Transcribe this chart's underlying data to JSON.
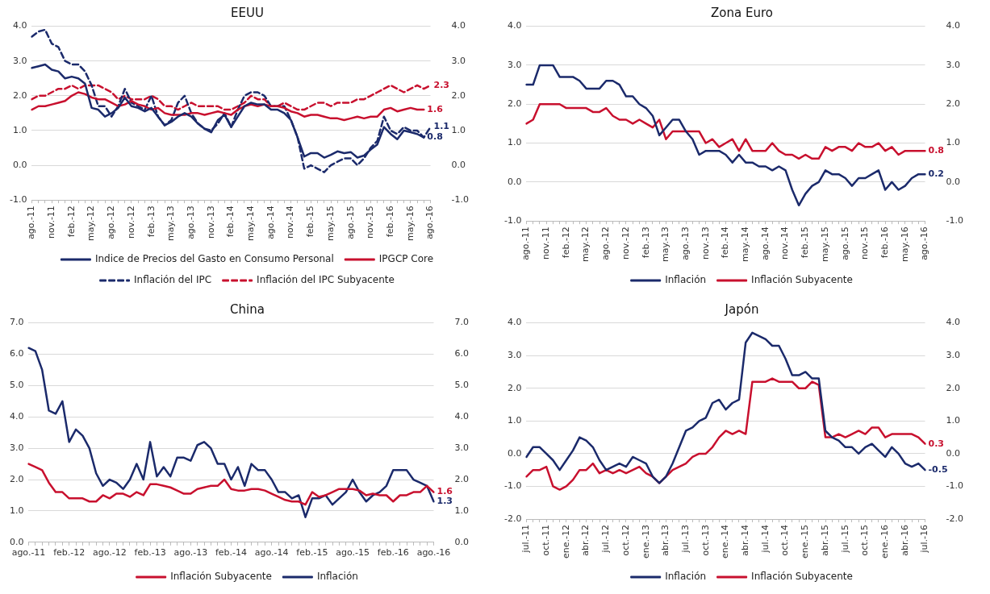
{
  "chart_data": [
    {
      "type": "line",
      "title": "EEUU",
      "legend": "bottom",
      "grid": "y",
      "marker": "none",
      "categories": [
        "ago.-11",
        null,
        null,
        "nov.-11",
        null,
        null,
        "feb.-12",
        null,
        null,
        "may.-12",
        null,
        null,
        "ago.-12",
        null,
        null,
        "nov.-12",
        null,
        null,
        "feb.-13",
        null,
        null,
        "may.-13",
        null,
        null,
        "ago.-13",
        null,
        null,
        "nov.-13",
        null,
        null,
        "feb.-14",
        null,
        null,
        "may.-14",
        null,
        null,
        "ago.-14",
        null,
        null,
        "nov.-14",
        null,
        null,
        "feb.-15",
        null,
        null,
        "may.-15",
        null,
        null,
        "ago.-15",
        null,
        null,
        "nov.-15",
        null,
        null,
        "feb.-16",
        null,
        null,
        "may.-16",
        null,
        null,
        "ago.-16"
      ],
      "ylim": [
        -1,
        4
      ],
      "yticks": [
        {
          "value": -1,
          "label": "-1.0"
        },
        {
          "value": 0,
          "label": "0.0"
        },
        {
          "value": 1,
          "label": "1.0"
        },
        {
          "value": 2,
          "label": "2.0"
        },
        {
          "value": 3,
          "label": "3.0"
        },
        {
          "value": 4,
          "label": "4.0"
        }
      ],
      "y2lim": [
        -1,
        4
      ],
      "y2ticks": [
        {
          "value": -1,
          "label": "-1.0"
        },
        {
          "value": 0,
          "label": "0.0"
        },
        {
          "value": 1,
          "label": "1.0"
        },
        {
          "value": 2,
          "label": "2.0"
        },
        {
          "value": 3,
          "label": "3.0"
        },
        {
          "value": 4,
          "label": "4.0"
        }
      ],
      "series": [
        {
          "name": "Indice de Precios del Gasto en Consumo Personal",
          "color": "#1b2a6b",
          "line_style": "solid",
          "values": [
            2.8,
            2.85,
            2.9,
            2.75,
            2.7,
            2.5,
            2.55,
            2.5,
            2.35,
            1.65,
            1.6,
            1.4,
            1.5,
            1.65,
            1.95,
            1.7,
            1.65,
            1.55,
            1.65,
            1.4,
            1.15,
            1.25,
            1.4,
            1.5,
            1.4,
            1.2,
            1.05,
            0.95,
            1.3,
            1.45,
            1.1,
            1.4,
            1.7,
            1.8,
            1.75,
            1.75,
            1.6,
            1.6,
            1.5,
            1.3,
            0.8,
            0.25,
            0.35,
            0.35,
            0.22,
            0.3,
            0.4,
            0.35,
            0.38,
            0.22,
            0.28,
            0.45,
            0.6,
            1.1,
            0.9,
            0.75,
            1.0,
            0.95,
            0.9,
            0.8,
            null
          ],
          "value_labels": [
            null,
            null,
            null,
            null,
            null,
            null,
            null,
            null,
            null,
            null,
            null,
            null,
            null,
            null,
            null,
            null,
            null,
            null,
            null,
            null,
            null,
            null,
            null,
            null,
            null,
            null,
            null,
            null,
            null,
            null,
            null,
            null,
            null,
            null,
            null,
            null,
            null,
            null,
            null,
            null,
            null,
            null,
            null,
            null,
            null,
            null,
            null,
            null,
            null,
            null,
            null,
            null,
            null,
            null,
            null,
            null,
            null,
            null,
            null,
            "0.8",
            null
          ]
        },
        {
          "name": "IPGCP Core",
          "color": "#c8102e",
          "line_style": "solid",
          "values": [
            1.6,
            1.7,
            1.7,
            1.75,
            1.8,
            1.85,
            2.0,
            2.1,
            2.05,
            1.95,
            1.9,
            1.9,
            1.8,
            1.7,
            1.75,
            1.85,
            1.75,
            1.7,
            1.6,
            1.65,
            1.5,
            1.45,
            1.45,
            1.45,
            1.5,
            1.5,
            1.45,
            1.5,
            1.55,
            1.5,
            1.45,
            1.6,
            1.7,
            1.75,
            1.7,
            1.75,
            1.7,
            1.7,
            1.65,
            1.55,
            1.5,
            1.4,
            1.45,
            1.45,
            1.4,
            1.35,
            1.35,
            1.3,
            1.35,
            1.4,
            1.35,
            1.4,
            1.4,
            1.6,
            1.65,
            1.55,
            1.6,
            1.65,
            1.6,
            1.6,
            null
          ],
          "value_labels": [
            null,
            null,
            null,
            null,
            null,
            null,
            null,
            null,
            null,
            null,
            null,
            null,
            null,
            null,
            null,
            null,
            null,
            null,
            null,
            null,
            null,
            null,
            null,
            null,
            null,
            null,
            null,
            null,
            null,
            null,
            null,
            null,
            null,
            null,
            null,
            null,
            null,
            null,
            null,
            null,
            null,
            null,
            null,
            null,
            null,
            null,
            null,
            null,
            null,
            null,
            null,
            null,
            null,
            null,
            null,
            null,
            null,
            null,
            null,
            "1.6",
            null
          ]
        },
        {
          "name": "Inflación del IPC",
          "color": "#1b2a6b",
          "line_style": "dashed",
          "values": [
            3.7,
            3.85,
            3.9,
            3.5,
            3.4,
            3.0,
            2.9,
            2.9,
            2.7,
            2.3,
            1.7,
            1.7,
            1.4,
            1.7,
            2.2,
            1.8,
            1.7,
            1.6,
            2.0,
            1.4,
            1.15,
            1.3,
            1.8,
            2.0,
            1.5,
            1.2,
            1.05,
            1.0,
            1.2,
            1.5,
            1.1,
            1.6,
            2.0,
            2.1,
            2.1,
            2.0,
            1.7,
            1.7,
            1.7,
            1.3,
            0.8,
            -0.1,
            0.0,
            -0.1,
            -0.2,
            0.0,
            0.1,
            0.2,
            0.2,
            0.0,
            0.2,
            0.5,
            0.7,
            1.4,
            1.0,
            0.9,
            1.1,
            1.0,
            1.0,
            0.8,
            1.1
          ],
          "value_labels": [
            null,
            null,
            null,
            null,
            null,
            null,
            null,
            null,
            null,
            null,
            null,
            null,
            null,
            null,
            null,
            null,
            null,
            null,
            null,
            null,
            null,
            null,
            null,
            null,
            null,
            null,
            null,
            null,
            null,
            null,
            null,
            null,
            null,
            null,
            null,
            null,
            null,
            null,
            null,
            null,
            null,
            null,
            null,
            null,
            null,
            null,
            null,
            null,
            null,
            null,
            null,
            null,
            null,
            null,
            null,
            null,
            null,
            null,
            null,
            null,
            "1.1"
          ]
        },
        {
          "name": "Inflación del IPC Subyacente",
          "color": "#c8102e",
          "line_style": "dashed",
          "values": [
            1.9,
            2.0,
            2.0,
            2.1,
            2.2,
            2.2,
            2.3,
            2.2,
            2.3,
            2.3,
            2.3,
            2.2,
            2.1,
            1.9,
            2.0,
            1.9,
            1.9,
            1.9,
            2.0,
            1.9,
            1.7,
            1.7,
            1.6,
            1.7,
            1.8,
            1.7,
            1.7,
            1.7,
            1.7,
            1.6,
            1.6,
            1.7,
            1.8,
            2.0,
            1.9,
            1.9,
            1.7,
            1.7,
            1.8,
            1.7,
            1.6,
            1.6,
            1.7,
            1.8,
            1.8,
            1.7,
            1.8,
            1.8,
            1.8,
            1.9,
            1.9,
            2.0,
            2.1,
            2.2,
            2.3,
            2.2,
            2.1,
            2.2,
            2.3,
            2.2,
            2.3
          ],
          "value_labels": [
            null,
            null,
            null,
            null,
            null,
            null,
            null,
            null,
            null,
            null,
            null,
            null,
            null,
            null,
            null,
            null,
            null,
            null,
            null,
            null,
            null,
            null,
            null,
            null,
            null,
            null,
            null,
            null,
            null,
            null,
            null,
            null,
            null,
            null,
            null,
            null,
            null,
            null,
            null,
            null,
            null,
            null,
            null,
            null,
            null,
            null,
            null,
            null,
            null,
            null,
            null,
            null,
            null,
            null,
            null,
            null,
            null,
            null,
            null,
            null,
            "2.3"
          ]
        }
      ]
    },
    {
      "type": "line",
      "title": "Zona Euro",
      "legend": "bottom",
      "grid": "y",
      "marker": "none",
      "categories": [
        "ago.-11",
        null,
        null,
        "nov.-11",
        null,
        null,
        "feb.-12",
        null,
        null,
        "may.-12",
        null,
        null,
        "ago.-12",
        null,
        null,
        "nov.-12",
        null,
        null,
        "feb.-13",
        null,
        null,
        "may.-13",
        null,
        null,
        "ago.-13",
        null,
        null,
        "nov.-13",
        null,
        null,
        "feb.-14",
        null,
        null,
        "may.-14",
        null,
        null,
        "ago.-14",
        null,
        null,
        "nov.-14",
        null,
        null,
        "feb.-15",
        null,
        null,
        "may.-15",
        null,
        null,
        "ago.-15",
        null,
        null,
        "nov.-15",
        null,
        null,
        "feb.-16",
        null,
        null,
        "may.-16",
        null,
        null,
        "ago.-16"
      ],
      "ylim": [
        -1,
        4
      ],
      "yticks": [
        {
          "value": -1,
          "label": "-1.0"
        },
        {
          "value": 0,
          "label": "0.0"
        },
        {
          "value": 1,
          "label": "1.0"
        },
        {
          "value": 2,
          "label": "2.0"
        },
        {
          "value": 3,
          "label": "3.0"
        },
        {
          "value": 4,
          "label": "4.0"
        }
      ],
      "y2lim": [
        -1,
        4
      ],
      "y2ticks": [
        {
          "value": -1,
          "label": "-1.0"
        },
        {
          "value": 0,
          "label": "0.0"
        },
        {
          "value": 1,
          "label": "1.0"
        },
        {
          "value": 2,
          "label": "2.0"
        },
        {
          "value": 3,
          "label": "3.0"
        },
        {
          "value": 4,
          "label": "4.0"
        }
      ],
      "series": [
        {
          "name": "Inflación",
          "color": "#1b2a6b",
          "values": [
            2.5,
            2.5,
            3.0,
            3.0,
            3.0,
            2.7,
            2.7,
            2.7,
            2.6,
            2.4,
            2.4,
            2.4,
            2.6,
            2.6,
            2.5,
            2.2,
            2.2,
            2.0,
            1.9,
            1.7,
            1.2,
            1.4,
            1.6,
            1.6,
            1.3,
            1.1,
            0.7,
            0.8,
            0.8,
            0.8,
            0.7,
            0.5,
            0.7,
            0.5,
            0.5,
            0.4,
            0.4,
            0.3,
            0.4,
            0.3,
            -0.2,
            -0.6,
            -0.3,
            -0.1,
            0.0,
            0.3,
            0.2,
            0.2,
            0.1,
            -0.1,
            0.1,
            0.1,
            0.2,
            0.3,
            -0.2,
            0.0,
            -0.2,
            -0.1,
            0.1,
            0.2,
            0.2
          ],
          "value_labels": [
            null,
            null,
            null,
            null,
            null,
            null,
            null,
            null,
            null,
            null,
            null,
            null,
            null,
            null,
            null,
            null,
            null,
            null,
            null,
            null,
            null,
            null,
            null,
            null,
            null,
            null,
            null,
            null,
            null,
            null,
            null,
            null,
            null,
            null,
            null,
            null,
            null,
            null,
            null,
            null,
            null,
            null,
            null,
            null,
            null,
            null,
            null,
            null,
            null,
            null,
            null,
            null,
            null,
            null,
            null,
            null,
            null,
            null,
            null,
            null,
            "0.2"
          ]
        },
        {
          "name": "Inflación Subyacente",
          "color": "#c8102e",
          "values": [
            1.5,
            1.6,
            2.0,
            2.0,
            2.0,
            2.0,
            1.9,
            1.9,
            1.9,
            1.9,
            1.8,
            1.8,
            1.9,
            1.7,
            1.6,
            1.6,
            1.5,
            1.6,
            1.5,
            1.4,
            1.6,
            1.1,
            1.3,
            1.3,
            1.3,
            1.3,
            1.3,
            1.0,
            1.1,
            0.9,
            1.0,
            1.1,
            0.8,
            1.1,
            0.8,
            0.8,
            0.8,
            1.0,
            0.8,
            0.7,
            0.7,
            0.6,
            0.7,
            0.6,
            0.6,
            0.9,
            0.8,
            0.9,
            0.9,
            0.8,
            1.0,
            0.9,
            0.9,
            1.0,
            0.8,
            0.9,
            0.7,
            0.8,
            0.8,
            0.8,
            0.8
          ],
          "value_labels": [
            null,
            null,
            null,
            null,
            null,
            null,
            null,
            null,
            null,
            null,
            null,
            null,
            null,
            null,
            null,
            null,
            null,
            null,
            null,
            null,
            null,
            null,
            null,
            null,
            null,
            null,
            null,
            null,
            null,
            null,
            null,
            null,
            null,
            null,
            null,
            null,
            null,
            null,
            null,
            null,
            null,
            null,
            null,
            null,
            null,
            null,
            null,
            null,
            null,
            null,
            null,
            null,
            null,
            null,
            null,
            null,
            null,
            null,
            null,
            null,
            "0.8"
          ]
        }
      ]
    },
    {
      "type": "line",
      "title": "China",
      "legend": "bottom",
      "grid": "y",
      "marker": "none",
      "categories": [
        "ago.-11",
        null,
        null,
        null,
        null,
        null,
        "feb.-12",
        null,
        null,
        null,
        null,
        null,
        "ago.-12",
        null,
        null,
        null,
        null,
        null,
        "feb.-13",
        null,
        null,
        null,
        null,
        null,
        "ago.-13",
        null,
        null,
        null,
        null,
        null,
        "feb.-14",
        null,
        null,
        null,
        null,
        null,
        "ago.-14",
        null,
        null,
        null,
        null,
        null,
        "feb.-15",
        null,
        null,
        null,
        null,
        null,
        "ago.-15",
        null,
        null,
        null,
        null,
        null,
        "feb.-16",
        null,
        null,
        null,
        null,
        null,
        "ago.-16"
      ],
      "ylim": [
        0,
        7
      ],
      "yticks": [
        {
          "value": 0,
          "label": "0.0"
        },
        {
          "value": 1,
          "label": "1.0"
        },
        {
          "value": 2,
          "label": "2.0"
        },
        {
          "value": 3,
          "label": "3.0"
        },
        {
          "value": 4,
          "label": "4.0"
        },
        {
          "value": 5,
          "label": "5.0"
        },
        {
          "value": 6,
          "label": "6.0"
        },
        {
          "value": 7,
          "label": "7.0"
        }
      ],
      "y2lim": [
        0,
        7
      ],
      "y2ticks": [
        {
          "value": 0,
          "label": "0.0"
        },
        {
          "value": 1,
          "label": "1.0"
        },
        {
          "value": 2,
          "label": "2.0"
        },
        {
          "value": 3,
          "label": "3.0"
        },
        {
          "value": 4,
          "label": "4.0"
        },
        {
          "value": 5,
          "label": "5.0"
        },
        {
          "value": 6,
          "label": "6.0"
        },
        {
          "value": 7,
          "label": "7.0"
        }
      ],
      "series": [
        {
          "name": "Inflación Subyacente",
          "color": "#c8102e",
          "values": [
            2.5,
            2.4,
            2.3,
            1.9,
            1.6,
            1.6,
            1.4,
            1.4,
            1.4,
            1.3,
            1.3,
            1.5,
            1.4,
            1.55,
            1.55,
            1.45,
            1.6,
            1.5,
            1.85,
            1.85,
            1.8,
            1.75,
            1.65,
            1.55,
            1.55,
            1.7,
            1.75,
            1.8,
            1.8,
            2.0,
            1.7,
            1.65,
            1.65,
            1.7,
            1.7,
            1.65,
            1.55,
            1.45,
            1.35,
            1.3,
            1.3,
            1.2,
            1.6,
            1.45,
            1.5,
            1.6,
            1.7,
            1.7,
            1.7,
            1.65,
            1.5,
            1.55,
            1.5,
            1.5,
            1.3,
            1.5,
            1.5,
            1.6,
            1.6,
            1.8,
            1.6
          ],
          "value_labels": [
            null,
            null,
            null,
            null,
            null,
            null,
            null,
            null,
            null,
            null,
            null,
            null,
            null,
            null,
            null,
            null,
            null,
            null,
            null,
            null,
            null,
            null,
            null,
            null,
            null,
            null,
            null,
            null,
            null,
            null,
            null,
            null,
            null,
            null,
            null,
            null,
            null,
            null,
            null,
            null,
            null,
            null,
            null,
            null,
            null,
            null,
            null,
            null,
            null,
            null,
            null,
            null,
            null,
            null,
            null,
            null,
            null,
            null,
            null,
            null,
            "1.6"
          ]
        },
        {
          "name": "Inflación",
          "color": "#1b2a6b",
          "values": [
            6.2,
            6.1,
            5.5,
            4.2,
            4.1,
            4.5,
            3.2,
            3.6,
            3.4,
            3.0,
            2.2,
            1.8,
            2.0,
            1.9,
            1.7,
            2.0,
            2.5,
            2.0,
            3.2,
            2.1,
            2.4,
            2.1,
            2.7,
            2.7,
            2.6,
            3.1,
            3.2,
            3.0,
            2.5,
            2.5,
            2.0,
            2.4,
            1.8,
            2.5,
            2.3,
            2.3,
            2.0,
            1.6,
            1.6,
            1.4,
            1.5,
            0.8,
            1.4,
            1.4,
            1.5,
            1.2,
            1.4,
            1.6,
            2.0,
            1.6,
            1.3,
            1.5,
            1.6,
            1.8,
            2.3,
            2.3,
            2.3,
            2.0,
            1.9,
            1.8,
            1.3
          ],
          "value_labels": [
            null,
            null,
            null,
            null,
            null,
            null,
            null,
            null,
            null,
            null,
            null,
            null,
            null,
            null,
            null,
            null,
            null,
            null,
            null,
            null,
            null,
            null,
            null,
            null,
            null,
            null,
            null,
            null,
            null,
            null,
            null,
            null,
            null,
            null,
            null,
            null,
            null,
            null,
            null,
            null,
            null,
            null,
            null,
            null,
            null,
            null,
            null,
            null,
            null,
            null,
            null,
            null,
            null,
            null,
            null,
            null,
            null,
            null,
            null,
            null,
            "1.3"
          ]
        }
      ]
    },
    {
      "type": "line",
      "title": "Japón",
      "legend": "bottom",
      "grid": "y",
      "marker": "none",
      "categories": [
        "jul.-11",
        null,
        null,
        "oct.-11",
        null,
        null,
        "ene.-12",
        null,
        null,
        "abr.-12",
        null,
        null,
        "jul.-12",
        null,
        null,
        "oct.-12",
        null,
        null,
        "ene.-13",
        null,
        null,
        "abr.-13",
        null,
        null,
        "jul.-13",
        null,
        null,
        "oct.-13",
        null,
        null,
        "ene.-14",
        null,
        null,
        "abr.-14",
        null,
        null,
        "jul.-14",
        null,
        null,
        "oct.-14",
        null,
        null,
        "ene.-15",
        null,
        null,
        "abr.-15",
        null,
        null,
        "jul.-15",
        null,
        null,
        "oct.-15",
        null,
        null,
        "ene.-16",
        null,
        null,
        "abr.-16",
        null,
        null,
        "jul.-16"
      ],
      "ylim": [
        -2,
        4
      ],
      "yticks": [
        {
          "value": -2,
          "label": "-2.0"
        },
        {
          "value": -1,
          "label": "-1.0"
        },
        {
          "value": 0,
          "label": "0.0"
        },
        {
          "value": 1,
          "label": "1.0"
        },
        {
          "value": 2,
          "label": "2.0"
        },
        {
          "value": 3,
          "label": "3.0"
        },
        {
          "value": 4,
          "label": "4.0"
        }
      ],
      "y2lim": [
        -2,
        4
      ],
      "y2ticks": [
        {
          "value": -2,
          "label": "-2.0"
        },
        {
          "value": -1,
          "label": "-1.0"
        },
        {
          "value": 0,
          "label": "0.0"
        },
        {
          "value": 1,
          "label": "1.0"
        },
        {
          "value": 2,
          "label": "2.0"
        },
        {
          "value": 3,
          "label": "3.0"
        },
        {
          "value": 4,
          "label": "4.0"
        }
      ],
      "series": [
        {
          "name": "Inflación",
          "color": "#1b2a6b",
          "values": [
            -0.1,
            0.2,
            0.2,
            0.0,
            -0.2,
            -0.5,
            -0.2,
            0.1,
            0.5,
            0.4,
            0.2,
            -0.2,
            -0.5,
            -0.4,
            -0.3,
            -0.4,
            -0.1,
            -0.2,
            -0.3,
            -0.7,
            -0.9,
            -0.7,
            -0.3,
            0.2,
            0.7,
            0.8,
            1.0,
            1.1,
            1.55,
            1.65,
            1.35,
            1.55,
            1.65,
            3.4,
            3.7,
            3.6,
            3.5,
            3.3,
            3.3,
            2.9,
            2.4,
            2.4,
            2.5,
            2.3,
            2.3,
            0.7,
            0.5,
            0.4,
            0.2,
            0.2,
            0.0,
            0.2,
            0.3,
            0.1,
            -0.1,
            0.2,
            0.0,
            -0.3,
            -0.4,
            -0.3,
            -0.5
          ],
          "value_labels": [
            null,
            null,
            null,
            null,
            null,
            null,
            null,
            null,
            null,
            null,
            null,
            null,
            null,
            null,
            null,
            null,
            null,
            null,
            null,
            null,
            null,
            null,
            null,
            null,
            null,
            null,
            null,
            null,
            null,
            null,
            null,
            null,
            null,
            null,
            null,
            null,
            null,
            null,
            null,
            null,
            null,
            null,
            null,
            null,
            null,
            null,
            null,
            null,
            null,
            null,
            null,
            null,
            null,
            null,
            null,
            null,
            null,
            null,
            null,
            null,
            "-0.5"
          ]
        },
        {
          "name": "Inflación Subyacente",
          "color": "#c8102e",
          "values": [
            -0.7,
            -0.5,
            -0.5,
            -0.4,
            -1.0,
            -1.1,
            -1.0,
            -0.8,
            -0.5,
            -0.5,
            -0.3,
            -0.6,
            -0.5,
            -0.6,
            -0.5,
            -0.6,
            -0.5,
            -0.4,
            -0.6,
            -0.7,
            -0.9,
            -0.7,
            -0.5,
            -0.4,
            -0.3,
            -0.1,
            0.0,
            0.0,
            0.2,
            0.5,
            0.7,
            0.6,
            0.7,
            0.6,
            2.2,
            2.2,
            2.2,
            2.3,
            2.2,
            2.2,
            2.2,
            2.0,
            2.0,
            2.2,
            2.1,
            0.5,
            0.5,
            0.6,
            0.5,
            0.6,
            0.7,
            0.6,
            0.8,
            0.8,
            0.5,
            0.6,
            0.6,
            0.6,
            0.6,
            0.5,
            0.3
          ],
          "value_labels": [
            null,
            null,
            null,
            null,
            null,
            null,
            null,
            null,
            null,
            null,
            null,
            null,
            null,
            null,
            null,
            null,
            null,
            null,
            null,
            null,
            null,
            null,
            null,
            null,
            null,
            null,
            null,
            null,
            null,
            null,
            null,
            null,
            null,
            null,
            null,
            null,
            null,
            null,
            null,
            null,
            null,
            null,
            null,
            null,
            null,
            null,
            null,
            null,
            null,
            null,
            null,
            null,
            null,
            null,
            null,
            null,
            null,
            null,
            null,
            null,
            "0.3"
          ]
        }
      ]
    }
  ]
}
